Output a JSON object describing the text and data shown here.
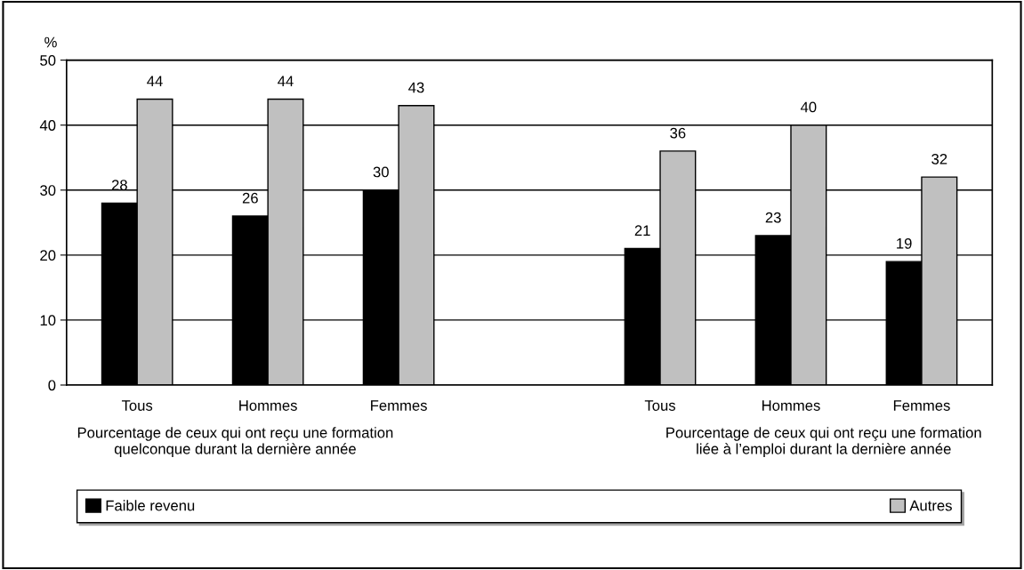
{
  "chart_data": {
    "type": "bar",
    "ylabel": "%",
    "categories": [
      "Tous",
      "Hommes",
      "Femmes",
      null,
      "Tous",
      "Hommes",
      "Femmes"
    ],
    "series": [
      {
        "name": "Faible revenu",
        "color": "#000000",
        "values": [
          28,
          26,
          30,
          null,
          21,
          23,
          19
        ]
      },
      {
        "name": "Autres",
        "color": "#c0c0c0",
        "values": [
          44,
          44,
          43,
          null,
          36,
          40,
          32
        ]
      }
    ],
    "ylim": [
      0,
      50
    ],
    "yticks": [
      0,
      10,
      20,
      30,
      40,
      50
    ],
    "grid": "y",
    "data_labels": true,
    "legend": "bottom",
    "annotations": [
      "Pourcentage de ceux qui ont reçu une formation\nquelconque durant la dernière année",
      "Pourcentage de ceux qui ont reçu une formation\nliée à l’emploi durant la dernière année"
    ]
  }
}
